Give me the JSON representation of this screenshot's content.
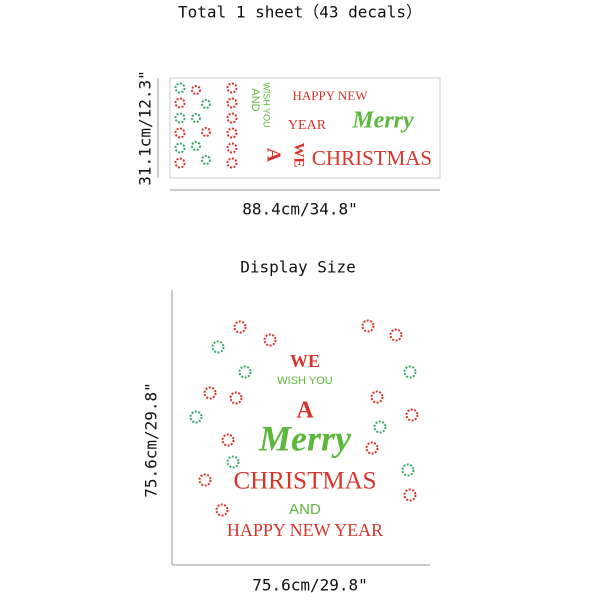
{
  "header": {
    "title": "Total 1 sheet（43 decals）"
  },
  "sheet": {
    "height": "31.1cm/12.3\"",
    "width": "88.4cm/34.8\"",
    "texts": {
      "happy_new": "HAPPY NEW",
      "year": "YEAR",
      "merry": "Merry",
      "christmas": "CHRISTMAS",
      "wish_you": "WISH YOU",
      "and": "AND",
      "we": "WE",
      "a": "A"
    }
  },
  "display": {
    "title": "Display Size",
    "height": "75.6cm/29.8\"",
    "width": "75.6cm/29.8\"",
    "texts": {
      "we": "WE",
      "wish_you": "WISH YOU",
      "a": "A",
      "merry": "Merry",
      "christmas": "CHRISTMAS",
      "and": "AND",
      "happy_new_year": "HAPPY NEW YEAR"
    }
  }
}
